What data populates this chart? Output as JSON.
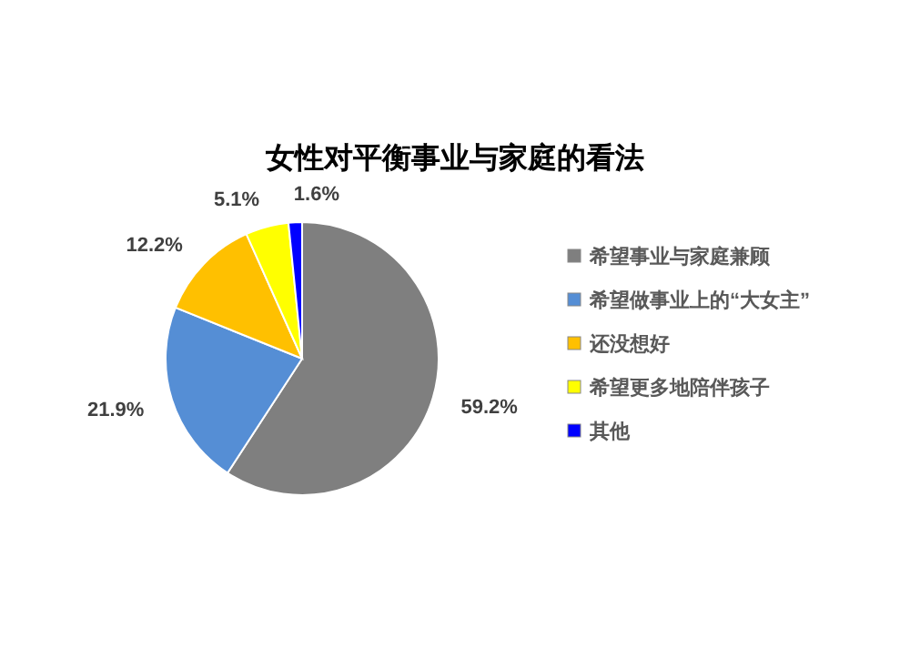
{
  "chart_data": {
    "type": "pie",
    "title": "女性对平衡事业与家庭的看法",
    "categories": [
      "希望事业与家庭兼顾",
      "希望做事业上的“大女主”",
      "还没想好",
      "希望更多地陪伴孩子",
      "其他"
    ],
    "values": [
      59.2,
      21.9,
      12.2,
      5.1,
      1.6
    ],
    "colors": [
      "#7f7f7f",
      "#558ed5",
      "#ffc000",
      "#ffff00",
      "#0000ff"
    ],
    "value_labels": [
      "59.2%",
      "21.9%",
      "12.2%",
      "5.1%",
      "1.6%"
    ],
    "legend": "right"
  }
}
